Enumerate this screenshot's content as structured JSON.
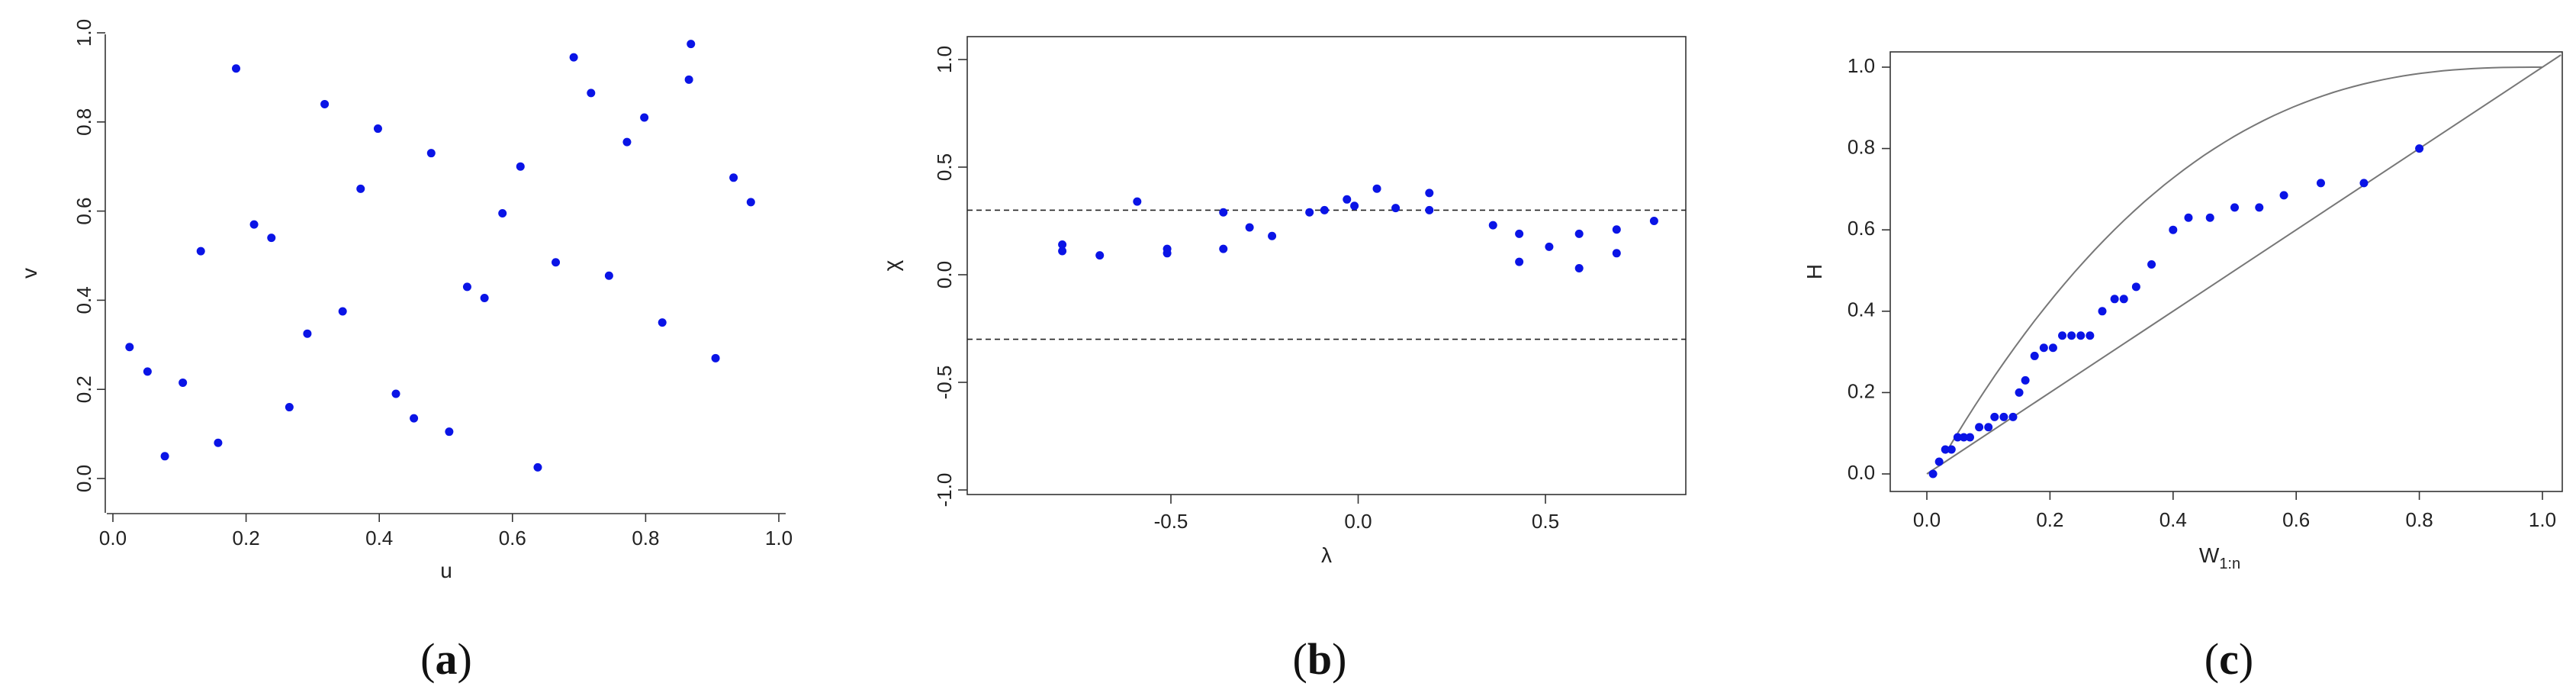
{
  "colors": {
    "points": "#0a14e6",
    "axes": "#333333"
  },
  "chart_data": [
    {
      "type": "scatter",
      "panel_label": "a",
      "xlabel": "u",
      "ylabel": "v",
      "xlim": [
        0,
        1
      ],
      "ylim": [
        0,
        1
      ],
      "xticks": [
        "0.0",
        "0.2",
        "0.4",
        "0.6",
        "0.8",
        "1.0"
      ],
      "yticks": [
        "0.0",
        "0.2",
        "0.4",
        "0.6",
        "0.8",
        "1.0"
      ],
      "points": [
        {
          "x": 0.025,
          "y": 0.295
        },
        {
          "x": 0.052,
          "y": 0.24
        },
        {
          "x": 0.078,
          "y": 0.05
        },
        {
          "x": 0.105,
          "y": 0.215
        },
        {
          "x": 0.132,
          "y": 0.51
        },
        {
          "x": 0.158,
          "y": 0.08
        },
        {
          "x": 0.185,
          "y": 0.92
        },
        {
          "x": 0.212,
          "y": 0.57
        },
        {
          "x": 0.238,
          "y": 0.54
        },
        {
          "x": 0.265,
          "y": 0.16
        },
        {
          "x": 0.292,
          "y": 0.325
        },
        {
          "x": 0.318,
          "y": 0.84
        },
        {
          "x": 0.345,
          "y": 0.375
        },
        {
          "x": 0.372,
          "y": 0.65
        },
        {
          "x": 0.398,
          "y": 0.785
        },
        {
          "x": 0.425,
          "y": 0.19
        },
        {
          "x": 0.452,
          "y": 0.135
        },
        {
          "x": 0.478,
          "y": 0.73
        },
        {
          "x": 0.505,
          "y": 0.105
        },
        {
          "x": 0.532,
          "y": 0.43
        },
        {
          "x": 0.558,
          "y": 0.405
        },
        {
          "x": 0.585,
          "y": 0.595
        },
        {
          "x": 0.612,
          "y": 0.7
        },
        {
          "x": 0.638,
          "y": 0.025
        },
        {
          "x": 0.665,
          "y": 0.485
        },
        {
          "x": 0.692,
          "y": 0.945
        },
        {
          "x": 0.718,
          "y": 0.865
        },
        {
          "x": 0.745,
          "y": 0.455
        },
        {
          "x": 0.772,
          "y": 0.755
        },
        {
          "x": 0.798,
          "y": 0.81
        },
        {
          "x": 0.825,
          "y": 0.35
        },
        {
          "x": 0.865,
          "y": 0.895
        },
        {
          "x": 0.868,
          "y": 0.975
        },
        {
          "x": 0.905,
          "y": 0.27
        },
        {
          "x": 0.932,
          "y": 0.675
        },
        {
          "x": 0.958,
          "y": 0.62
        }
      ]
    },
    {
      "type": "scatter",
      "panel_label": "b",
      "xlabel": "λ",
      "ylabel": "χ",
      "xlim": [
        -0.85,
        0.85
      ],
      "ylim": [
        -1.1,
        1.1
      ],
      "xticks": [
        "-0.5",
        "0.0",
        "0.5"
      ],
      "xtick_values": [
        -0.5,
        0,
        0.5
      ],
      "yticks": [
        "-1.0",
        "-0.5",
        "0.0",
        "0.5",
        "1.0"
      ],
      "ytick_values": [
        -1,
        -0.5,
        0,
        0.5,
        1
      ],
      "reference_lines": [
        0.3,
        -0.3
      ],
      "points": [
        {
          "x": -0.79,
          "y": 0.14
        },
        {
          "x": -0.79,
          "y": 0.11
        },
        {
          "x": -0.69,
          "y": 0.09
        },
        {
          "x": -0.59,
          "y": 0.34
        },
        {
          "x": -0.51,
          "y": 0.12
        },
        {
          "x": -0.51,
          "y": 0.1
        },
        {
          "x": -0.36,
          "y": 0.29
        },
        {
          "x": -0.36,
          "y": 0.12
        },
        {
          "x": -0.29,
          "y": 0.22
        },
        {
          "x": -0.23,
          "y": 0.18
        },
        {
          "x": -0.13,
          "y": 0.29
        },
        {
          "x": -0.09,
          "y": 0.3
        },
        {
          "x": -0.03,
          "y": 0.35
        },
        {
          "x": -0.01,
          "y": 0.32
        },
        {
          "x": 0.05,
          "y": 0.4
        },
        {
          "x": 0.1,
          "y": 0.31
        },
        {
          "x": 0.19,
          "y": 0.38
        },
        {
          "x": 0.19,
          "y": 0.3
        },
        {
          "x": 0.36,
          "y": 0.23
        },
        {
          "x": 0.43,
          "y": 0.19
        },
        {
          "x": 0.43,
          "y": 0.06
        },
        {
          "x": 0.51,
          "y": 0.13
        },
        {
          "x": 0.59,
          "y": 0.19
        },
        {
          "x": 0.59,
          "y": 0.03
        },
        {
          "x": 0.69,
          "y": 0.21
        },
        {
          "x": 0.69,
          "y": 0.1
        },
        {
          "x": 0.79,
          "y": 0.25
        }
      ]
    },
    {
      "type": "scatter",
      "panel_label": "c",
      "xlabel": "W",
      "xlabel_subscript": "1:n",
      "ylabel": "H",
      "xlim": [
        -0.04,
        1.04
      ],
      "ylim": [
        -0.04,
        1.04
      ],
      "xticks": [
        "0.0",
        "0.2",
        "0.4",
        "0.6",
        "0.8",
        "1.0"
      ],
      "yticks": [
        "0.0",
        "0.2",
        "0.4",
        "0.6",
        "0.8",
        "1.0"
      ],
      "bounds": [
        "lower: H = W",
        "upper: concave curve from (0.03, 0.05) to (1, 1)"
      ],
      "points": [
        {
          "x": 0.01,
          "y": 0.0
        },
        {
          "x": 0.02,
          "y": 0.03
        },
        {
          "x": 0.03,
          "y": 0.06
        },
        {
          "x": 0.04,
          "y": 0.06
        },
        {
          "x": 0.05,
          "y": 0.09
        },
        {
          "x": 0.06,
          "y": 0.09
        },
        {
          "x": 0.07,
          "y": 0.09
        },
        {
          "x": 0.085,
          "y": 0.115
        },
        {
          "x": 0.1,
          "y": 0.115
        },
        {
          "x": 0.11,
          "y": 0.14
        },
        {
          "x": 0.125,
          "y": 0.14
        },
        {
          "x": 0.14,
          "y": 0.14
        },
        {
          "x": 0.15,
          "y": 0.2
        },
        {
          "x": 0.16,
          "y": 0.23
        },
        {
          "x": 0.175,
          "y": 0.29
        },
        {
          "x": 0.19,
          "y": 0.31
        },
        {
          "x": 0.205,
          "y": 0.31
        },
        {
          "x": 0.22,
          "y": 0.34
        },
        {
          "x": 0.235,
          "y": 0.34
        },
        {
          "x": 0.25,
          "y": 0.34
        },
        {
          "x": 0.265,
          "y": 0.34
        },
        {
          "x": 0.285,
          "y": 0.4
        },
        {
          "x": 0.305,
          "y": 0.43
        },
        {
          "x": 0.32,
          "y": 0.43
        },
        {
          "x": 0.34,
          "y": 0.46
        },
        {
          "x": 0.365,
          "y": 0.515
        },
        {
          "x": 0.4,
          "y": 0.6
        },
        {
          "x": 0.425,
          "y": 0.63
        },
        {
          "x": 0.46,
          "y": 0.63
        },
        {
          "x": 0.5,
          "y": 0.655
        },
        {
          "x": 0.54,
          "y": 0.655
        },
        {
          "x": 0.58,
          "y": 0.685
        },
        {
          "x": 0.64,
          "y": 0.715
        },
        {
          "x": 0.71,
          "y": 0.715
        },
        {
          "x": 0.8,
          "y": 0.8
        }
      ]
    }
  ]
}
